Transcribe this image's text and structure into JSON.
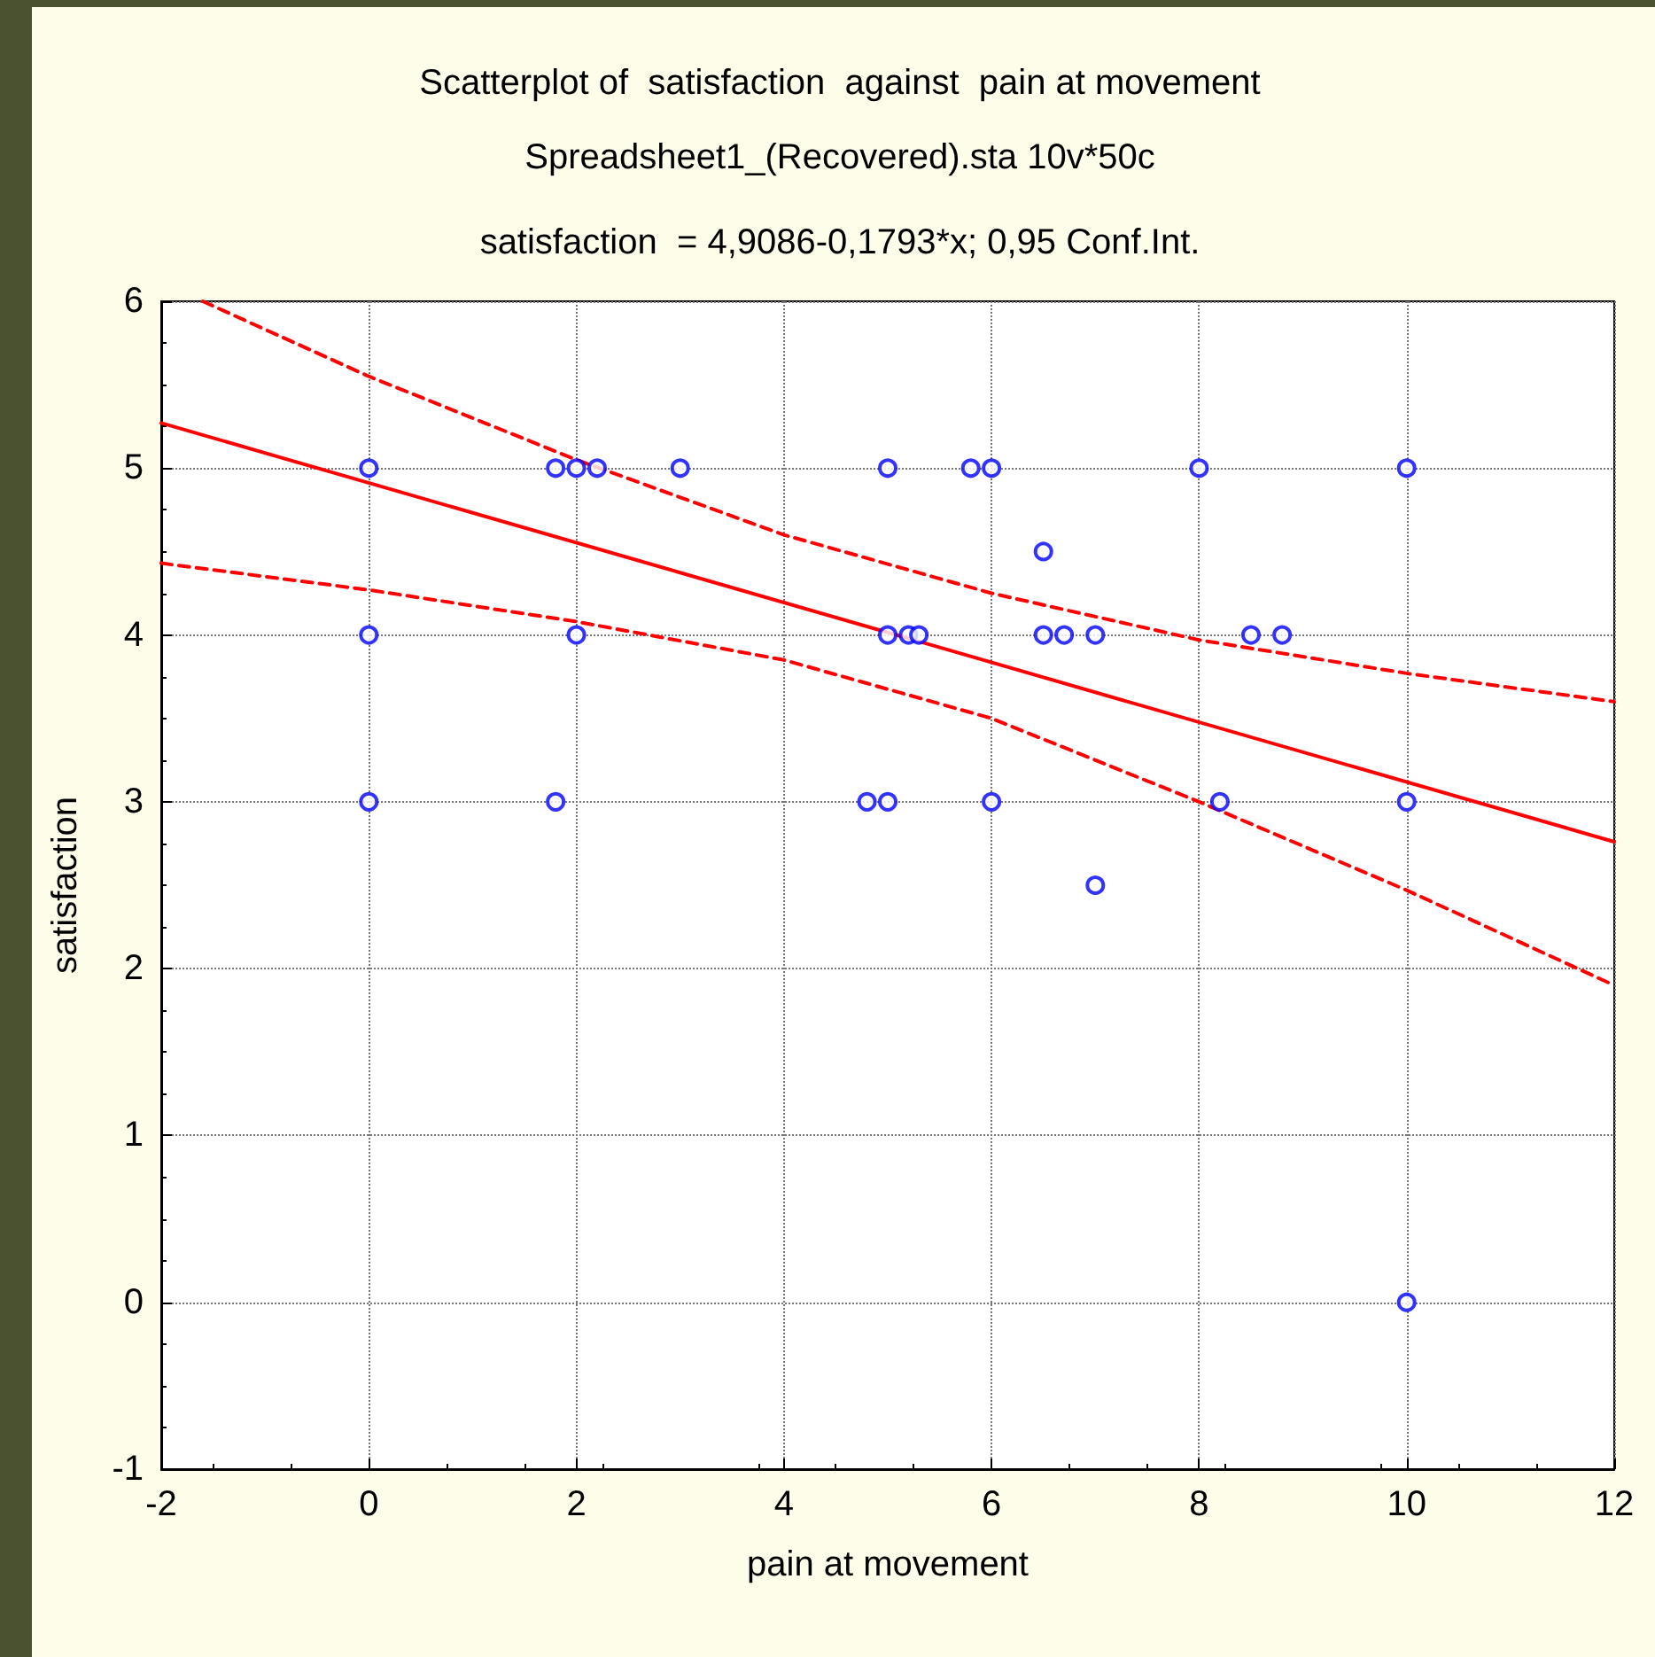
{
  "chart_data": {
    "type": "scatter",
    "title": "Scatterplot of  satisfaction  against  pain at movement",
    "subtitle": "Spreadsheet1_(Recovered).sta 10v*50c",
    "annotations": [
      "satisfaction  = 4,9086-0,1793*x; 0,95 Conf.Int."
    ],
    "xlabel": "pain at movement",
    "ylabel": "satisfaction",
    "xlim": [
      -2,
      12
    ],
    "xticks": [
      -2,
      0,
      2,
      4,
      6,
      8,
      10,
      12
    ],
    "ylim": [
      -1,
      6
    ],
    "yticks": [
      -1,
      0,
      1,
      2,
      3,
      4,
      5,
      6
    ],
    "grid": true,
    "series": [
      {
        "color": "#0000ff",
        "marker": "circle",
        "x": [
          0,
          0,
          0,
          1.8,
          2,
          2.2,
          3,
          5,
          5.8,
          6,
          8,
          10,
          6.5,
          2,
          5,
          5.2,
          5.3,
          6.5,
          6.7,
          7,
          8.5,
          8.8,
          1.8,
          4.8,
          5,
          6,
          7,
          8.2,
          10,
          10
        ],
        "values": [
          5,
          4,
          3,
          5,
          5,
          5,
          5,
          5,
          5,
          5,
          5,
          5,
          4.5,
          4,
          4,
          4,
          4,
          4,
          4,
          4,
          4,
          4,
          3,
          3,
          3,
          3,
          2.5,
          3,
          3,
          0
        ]
      },
      {
        "type": "line",
        "color": "#ff0000",
        "line_style": "solid",
        "marker": "none",
        "x": [
          -2,
          12
        ],
        "values": [
          5.27,
          2.76
        ]
      },
      {
        "type": "line",
        "color": "#ff0000",
        "line_style": "dashed",
        "marker": "none",
        "x": [
          -1.6,
          0,
          2,
          4,
          6,
          8,
          10,
          12
        ],
        "values": [
          6.0,
          5.55,
          5.05,
          4.6,
          4.25,
          3.97,
          3.77,
          3.6
        ]
      },
      {
        "type": "line",
        "color": "#ff0000",
        "line_style": "dashed",
        "marker": "none",
        "x": [
          -2,
          0,
          2,
          4,
          6,
          8,
          10,
          12
        ],
        "values": [
          4.43,
          4.27,
          4.08,
          3.85,
          3.5,
          3.0,
          2.47,
          1.9
        ]
      }
    ]
  }
}
